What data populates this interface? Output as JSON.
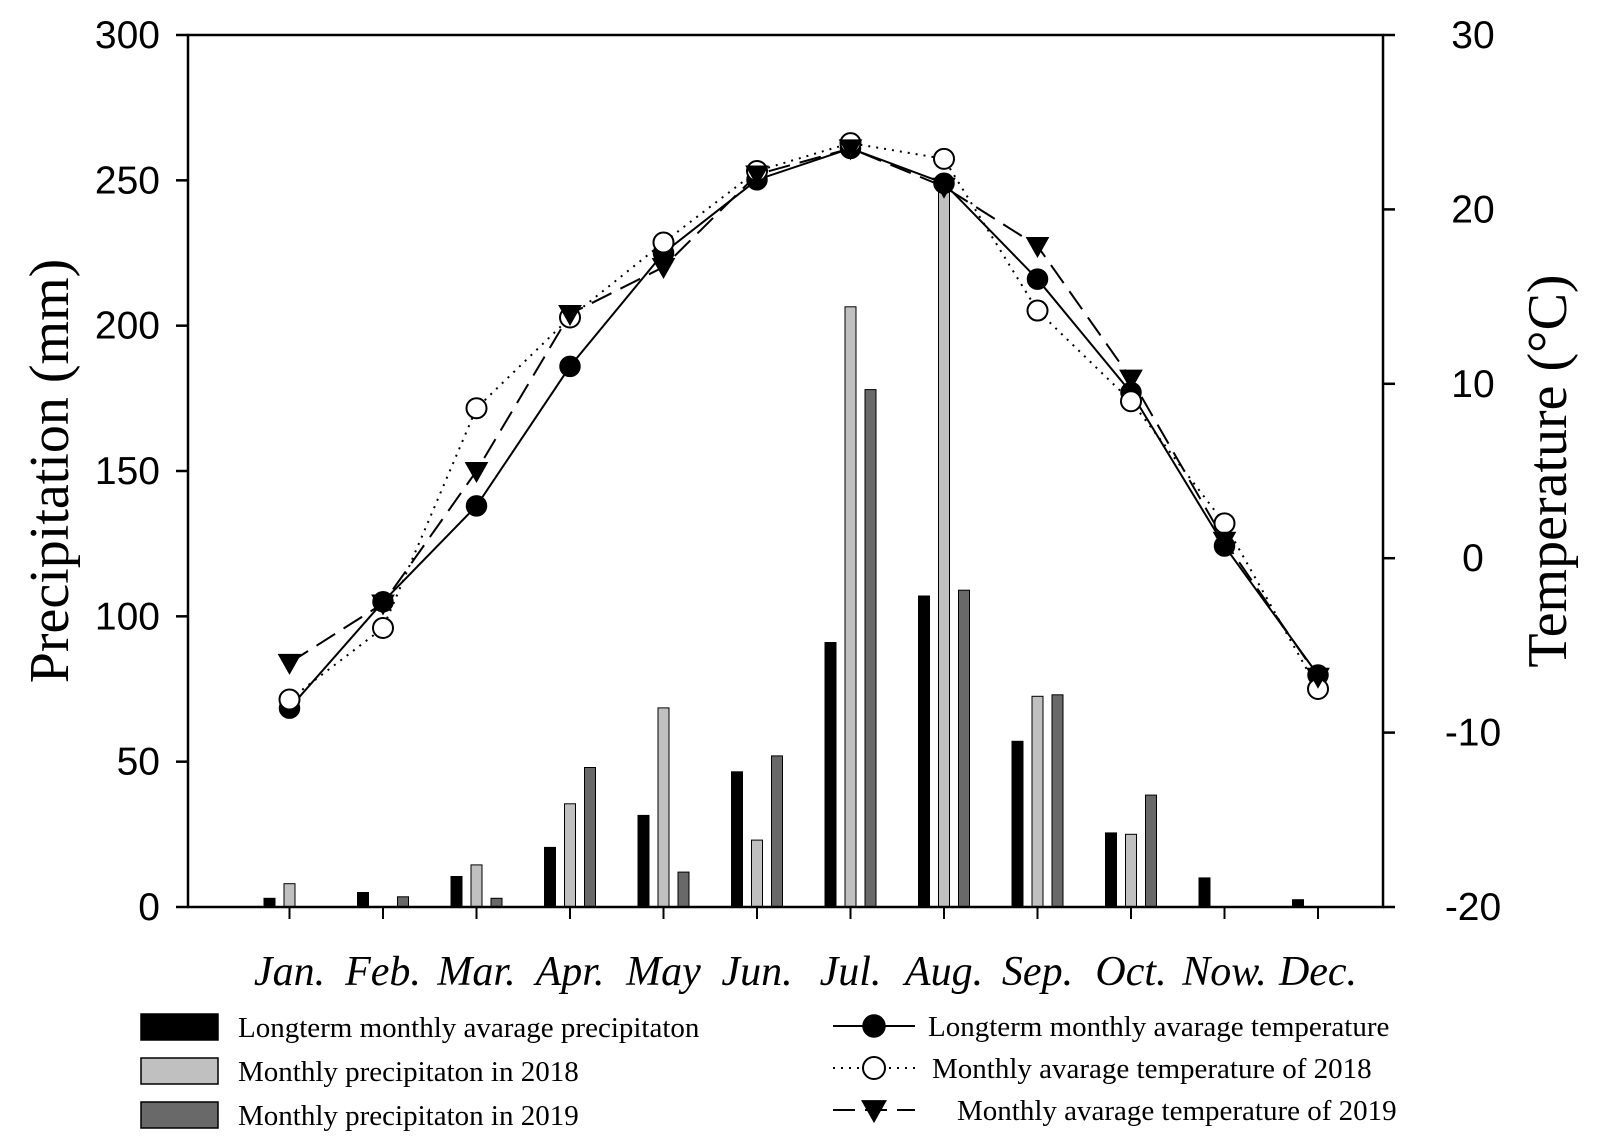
{
  "chart_data": {
    "type": "bar+line",
    "categories": [
      "Jan.",
      "Feb.",
      "Mar.",
      "Apr.",
      "May",
      "Jun.",
      "Jul.",
      "Aug.",
      "Sep.",
      "Oct.",
      "Now.",
      "Dec."
    ],
    "ylabel_left": "Precipitation (mm)",
    "ylabel_right": "Temperature (°C)",
    "ylim_left": [
      0,
      300
    ],
    "ylim_right": [
      -20,
      30
    ],
    "yticks_left": [
      "0",
      "50",
      "100",
      "150",
      "200",
      "250",
      "300"
    ],
    "yticks_right": [
      "-20",
      "-10",
      "0",
      "10",
      "20",
      "30"
    ],
    "bar_series": [
      {
        "name": "Longterm monthly avarage precipitaton",
        "color": "#000000",
        "values": [
          3,
          5,
          10.5,
          20.5,
          31.5,
          46.5,
          91,
          107,
          57,
          25.5,
          10,
          2.5
        ]
      },
      {
        "name": "Monthly precipitaton in 2018",
        "color": "#c0c0c0",
        "values": [
          8,
          0,
          14.5,
          35.5,
          68.5,
          23,
          206.5,
          250,
          72.5,
          25,
          0,
          0
        ]
      },
      {
        "name": "Monthly precipitaton in 2019",
        "color": "#696969",
        "values": [
          0,
          3.5,
          3,
          48,
          12,
          52,
          178,
          109,
          73,
          38.5,
          0,
          0
        ]
      }
    ],
    "line_series": [
      {
        "name": "Longterm monthly avarage temperature",
        "marker": "filled-circle",
        "dash": "solid",
        "values": [
          -8.6,
          -2.5,
          3,
          11,
          17.5,
          21.7,
          23.5,
          21.5,
          16,
          9.5,
          0.7,
          -6.7
        ]
      },
      {
        "name": "Monthly avarage temperature of  2018",
        "marker": "open-circle",
        "dash": "dotted",
        "values": [
          -8.1,
          -4,
          8.6,
          13.8,
          18.1,
          22.2,
          23.8,
          22.9,
          14.2,
          9,
          2,
          -7.5
        ]
      },
      {
        "name": "Monthly avarage temperature of 2019",
        "marker": "filled-triangle-down",
        "dash": "dashed",
        "values": [
          -6,
          -2.6,
          5,
          14,
          16.7,
          22,
          23.5,
          21.3,
          17.9,
          10.3,
          1,
          -6.8
        ]
      }
    ],
    "grid": false,
    "legend_position": "bottom"
  }
}
